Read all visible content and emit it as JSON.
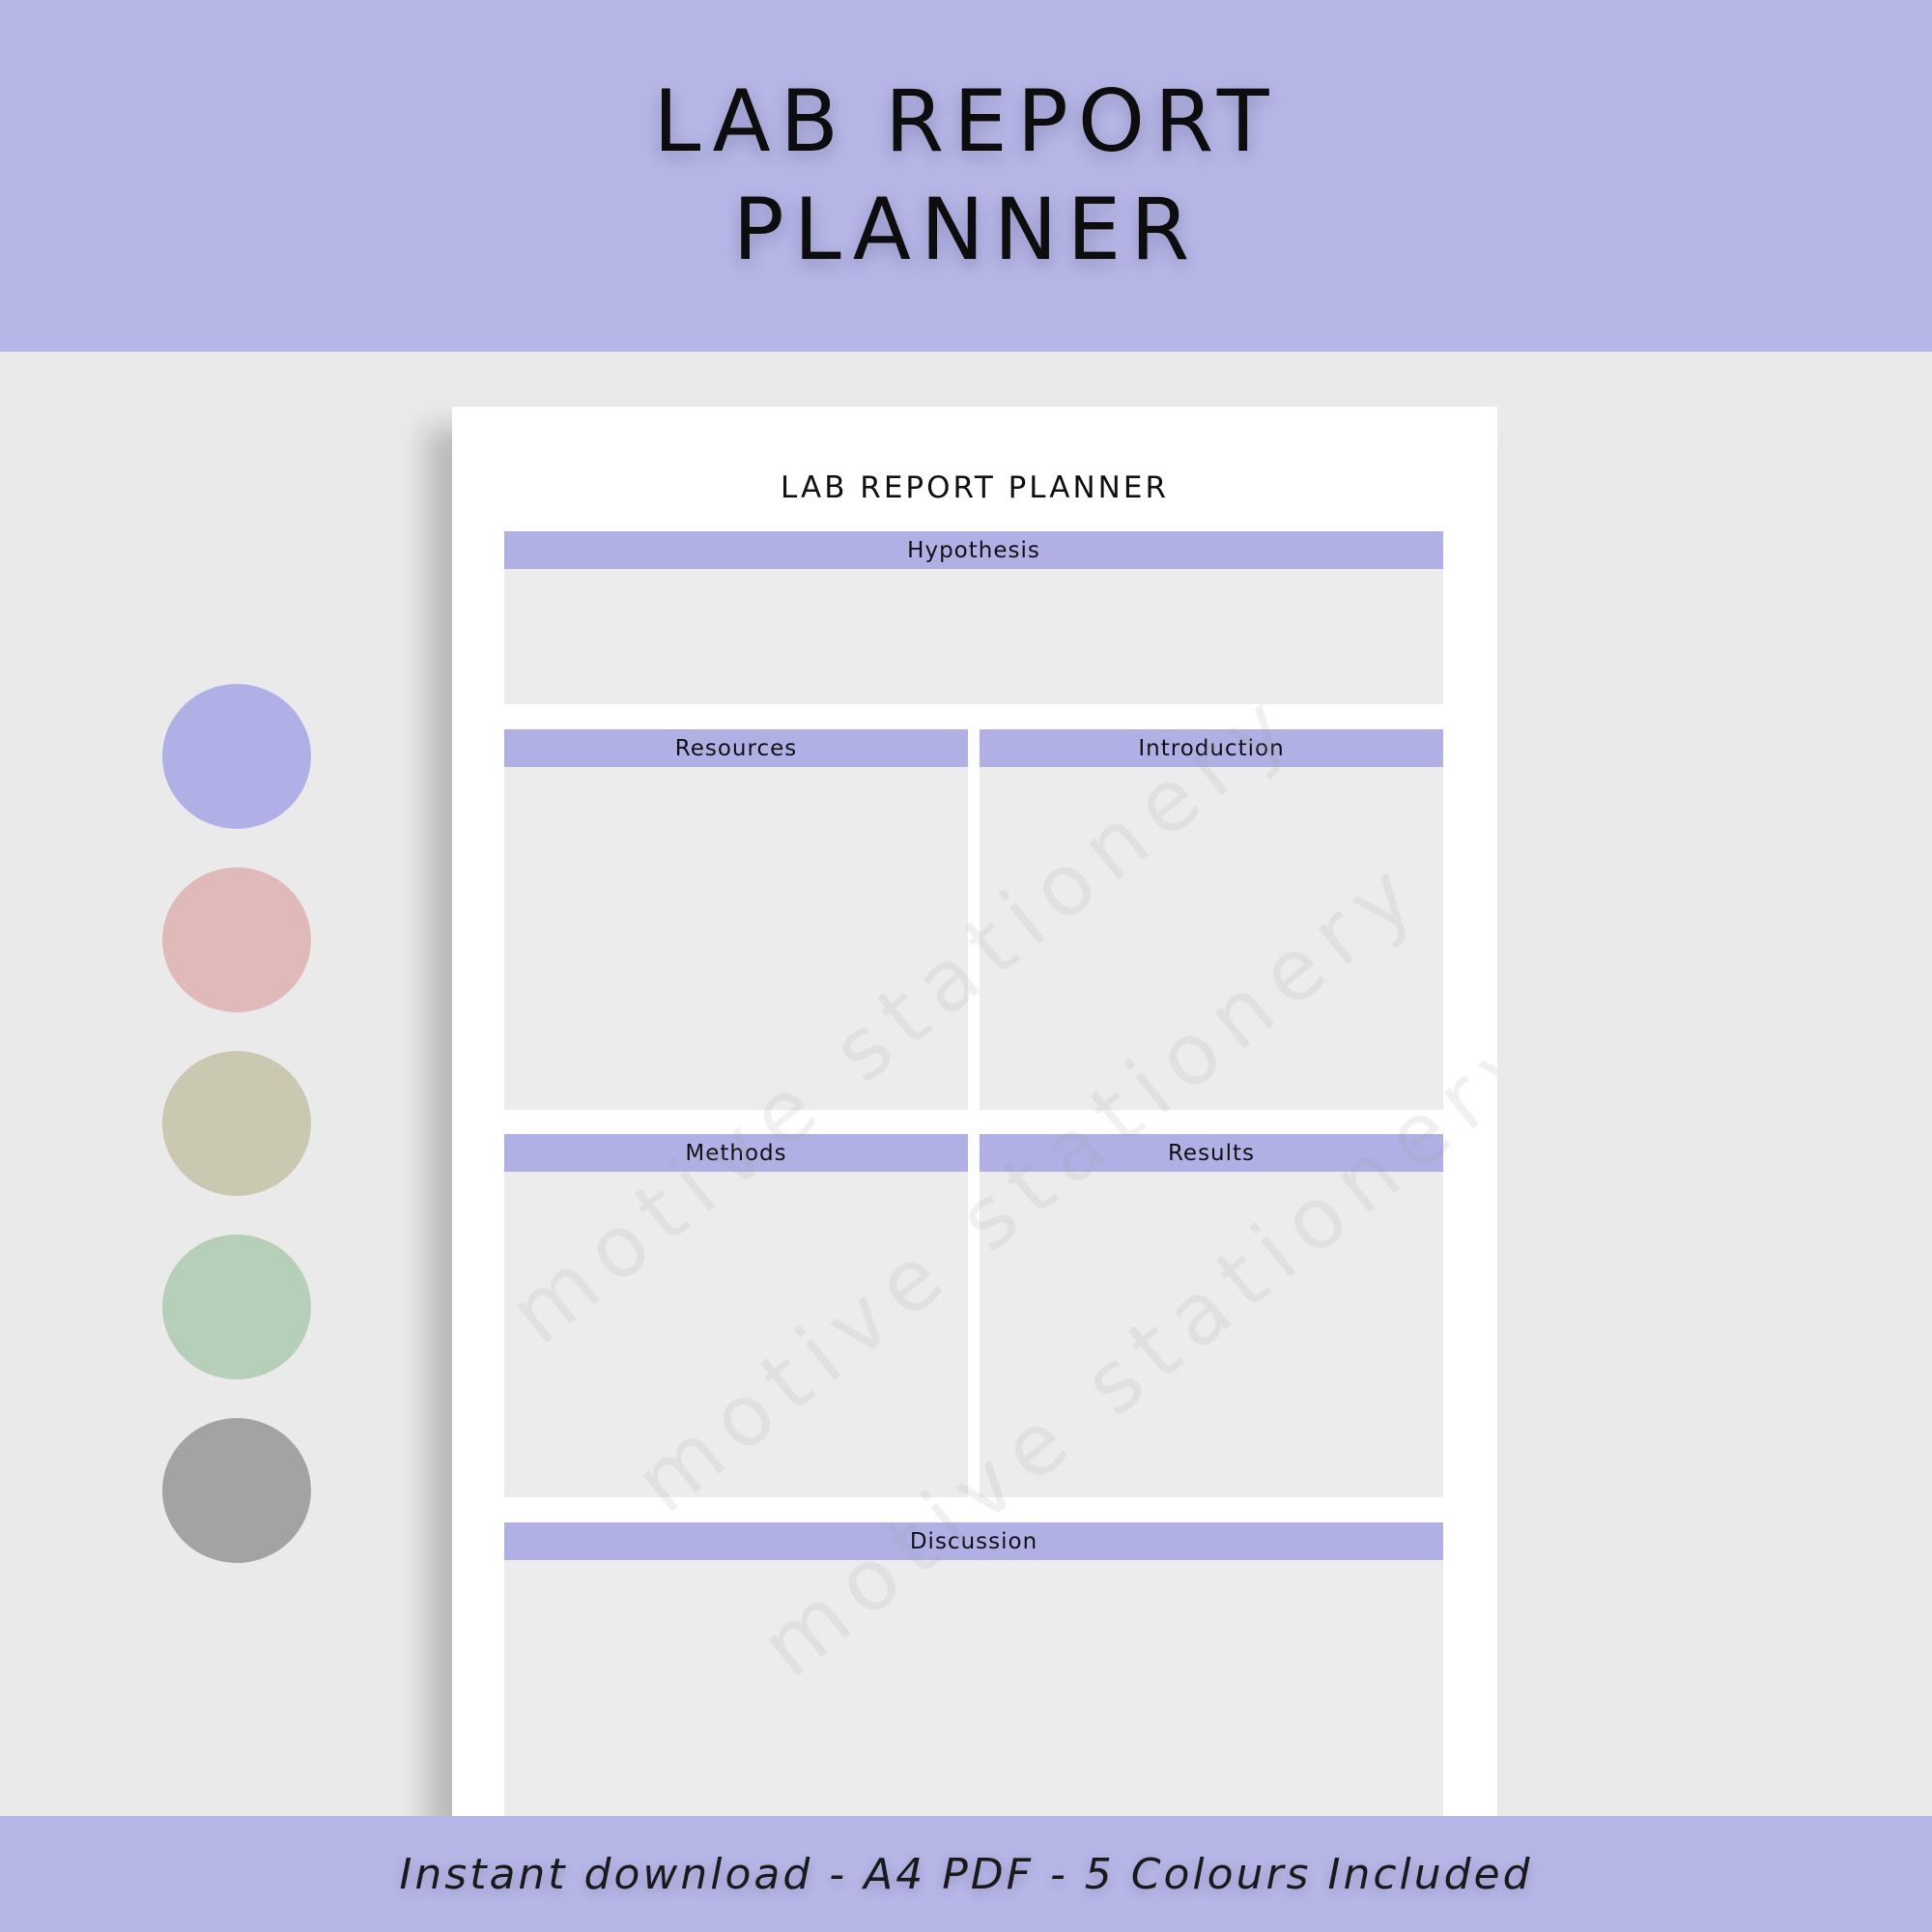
{
  "header": {
    "title_line1": "LAB REPORT",
    "title_line2": "PLANNER"
  },
  "swatches": [
    {
      "name": "lavender",
      "color": "#b0b0e6"
    },
    {
      "name": "dusty-pink",
      "color": "#dfbab8"
    },
    {
      "name": "sage-beige",
      "color": "#cac8b0"
    },
    {
      "name": "mint",
      "color": "#b6cfb9"
    },
    {
      "name": "grey",
      "color": "#a3a3a3"
    }
  ],
  "planner": {
    "title": "LAB REPORT PLANNER",
    "sections": {
      "hypothesis": "Hypothesis",
      "resources": "Resources",
      "introduction": "Introduction",
      "methods": "Methods",
      "results": "Results",
      "discussion": "Discussion"
    },
    "watermark": "motive stationery"
  },
  "footer": {
    "tagline": "Instant download - A4 PDF - 5 Colours Included"
  },
  "colors": {
    "banner": "#b7b7e7",
    "section_header": "#b0b0e4",
    "section_body": "#ececec",
    "page_background": "#ebeaea"
  }
}
